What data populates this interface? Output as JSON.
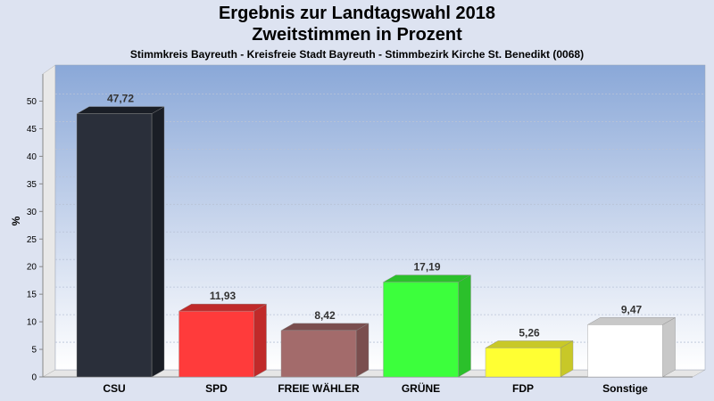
{
  "chart_data": {
    "type": "bar",
    "title": "Ergebnis zur Landtagswahl 2018",
    "subtitle": "Zweitstimmen in Prozent",
    "subtitle2": "Stimmkreis Bayreuth - Kreisfreie Stadt Bayreuth - Stimmbezirk Kirche St. Benedikt (0068)",
    "ylabel": "%",
    "xlabel": "",
    "ylim": [
      0,
      55
    ],
    "yticks": [
      0,
      5,
      10,
      15,
      20,
      25,
      30,
      35,
      40,
      45,
      50
    ],
    "grid": true,
    "categories": [
      "CSU",
      "SPD",
      "FREIE WÄHLER",
      "GRÜNE",
      "FDP",
      "Sonstige"
    ],
    "values": [
      47.72,
      11.93,
      8.42,
      17.19,
      5.26,
      9.47
    ],
    "value_labels": [
      "47,72",
      "11,93",
      "8,42",
      "17,19",
      "5,26",
      "9,47"
    ],
    "colors": [
      "#2a2f3a",
      "#ff3b3b",
      "#a36b6b",
      "#3cff3c",
      "#ffff33",
      "#ffffff"
    ],
    "side_colors": [
      "#1a1e26",
      "#c02a2a",
      "#7a4e4e",
      "#2bc02b",
      "#c8c828",
      "#c8c8c8"
    ]
  }
}
